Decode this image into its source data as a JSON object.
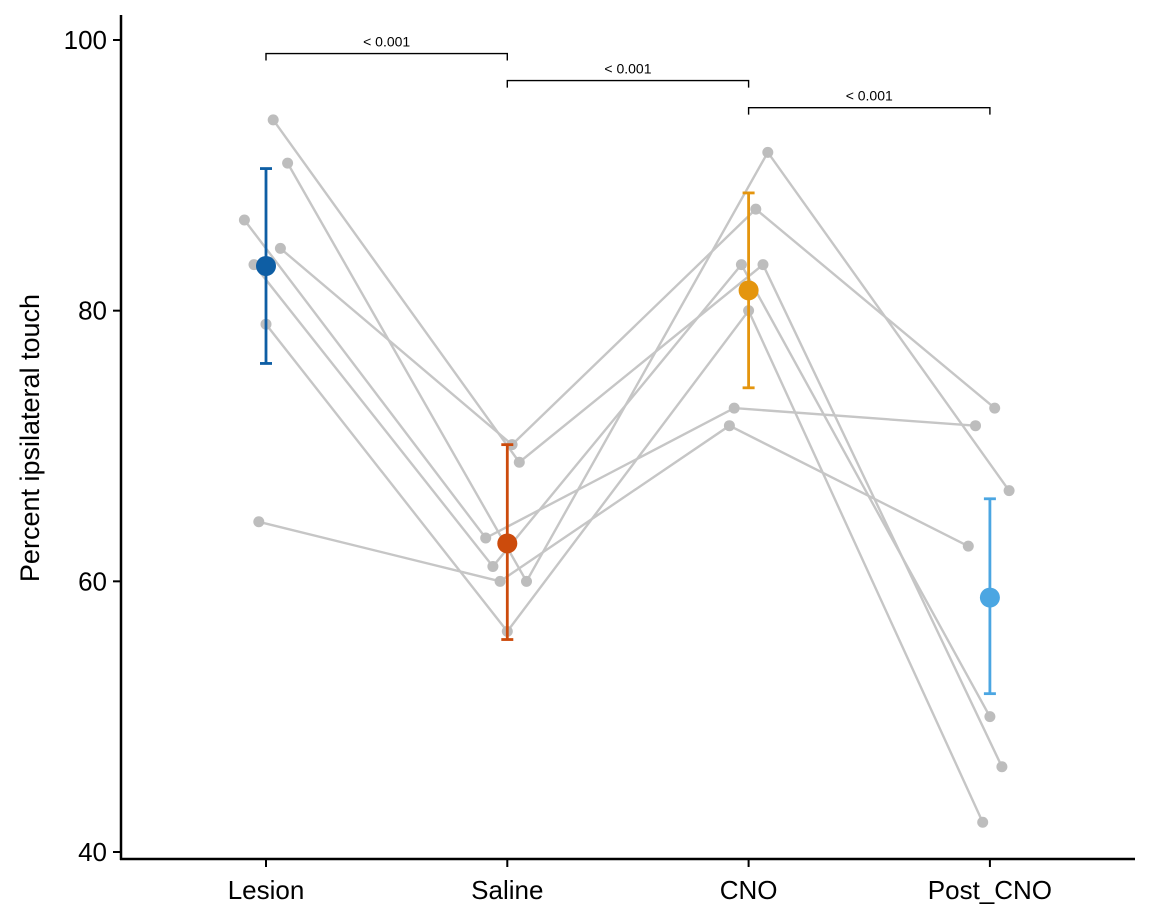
{
  "chart_data": {
    "type": "scatter",
    "subtype": "paired-points-with-mean-error-bars",
    "title": "",
    "xlabel": "",
    "ylabel": "Percent ipsilateral touch",
    "ylim": [
      39.5,
      102
    ],
    "yticks": [
      40,
      60,
      80,
      100
    ],
    "categories": [
      "Lesion",
      "Saline",
      "CNO",
      "Post_CNO"
    ],
    "colors": {
      "Lesion": "#0E5EA4",
      "Saline": "#CC4B0C",
      "CNO": "#E4950E",
      "Post_CNO": "#4BA6E2",
      "individual": "#BDBDBD",
      "individual_line": "#C6C6C6"
    },
    "grid": false,
    "legend": "none",
    "subjects": [
      {
        "values": [
          94.1,
          68.8,
          83.4,
          46.3
        ],
        "jitter": [
          0.03,
          0.05,
          0.06,
          0.05
        ]
      },
      {
        "values": [
          90.9,
          60.0,
          91.7,
          66.7
        ],
        "jitter": [
          0.09,
          0.08,
          0.08,
          0.08
        ]
      },
      {
        "values": [
          84.6,
          70.1,
          87.5,
          72.8
        ],
        "jitter": [
          0.06,
          0.02,
          0.03,
          0.02
        ]
      },
      {
        "values": [
          86.7,
          63.2,
          72.8,
          71.5
        ],
        "jitter": [
          -0.09,
          -0.09,
          -0.06,
          -0.06
        ]
      },
      {
        "values": [
          83.4,
          61.1,
          83.4,
          50.0
        ],
        "jitter": [
          -0.05,
          -0.06,
          -0.03,
          0.0
        ]
      },
      {
        "values": [
          79.0,
          56.3,
          80.0,
          42.2
        ],
        "jitter": [
          0.0,
          0.0,
          0.0,
          -0.03
        ]
      },
      {
        "values": [
          64.4,
          60.0,
          71.5,
          62.6
        ],
        "jitter": [
          -0.03,
          -0.03,
          -0.08,
          -0.09
        ]
      }
    ],
    "means": [
      83.3,
      62.8,
      81.5,
      58.8
    ],
    "error_low": [
      76.1,
      55.7,
      74.3,
      51.7
    ],
    "error_high": [
      90.5,
      70.1,
      88.7,
      66.1
    ],
    "comparisons": [
      {
        "from": "Lesion",
        "to": "Saline",
        "label": "< 0.001",
        "y": 99.0
      },
      {
        "from": "Saline",
        "to": "CNO",
        "label": "< 0.001",
        "y": 97.0
      },
      {
        "from": "CNO",
        "to": "Post_CNO",
        "label": "< 0.001",
        "y": 95.0
      }
    ]
  }
}
